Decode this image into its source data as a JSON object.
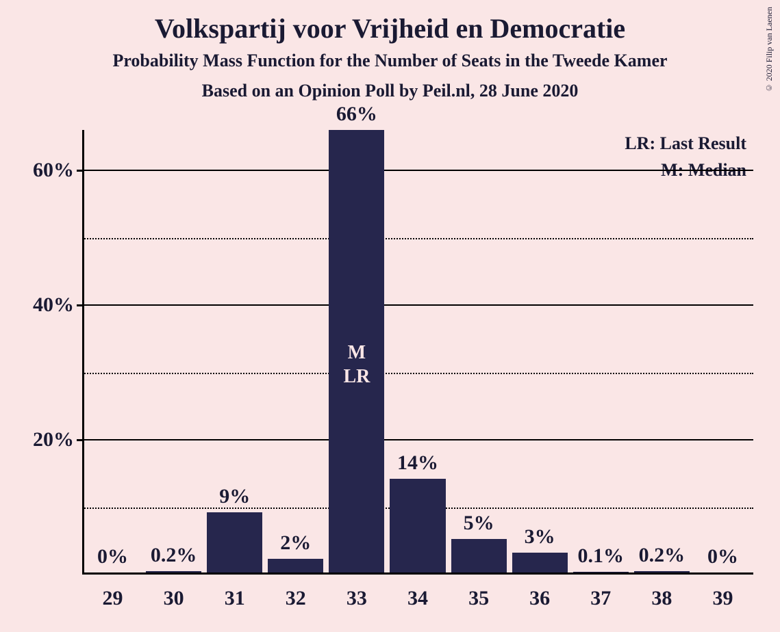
{
  "chart": {
    "type": "bar",
    "title": "Volkspartij voor Vrijheid en Democratie",
    "title_fontsize": 40,
    "subtitle1": "Probability Mass Function for the Number of Seats in the Tweede Kamer",
    "subtitle1_fontsize": 26,
    "subtitle2": "Based on an Opinion Poll by Peil.nl, 28 June 2020",
    "subtitle2_fontsize": 26,
    "copyright": "© 2020 Filip van Laenen",
    "background_color": "#fae6e6",
    "bar_color": "#26264d",
    "text_color": "#1a1a33",
    "ylim_max": 66,
    "y_major_ticks": [
      20,
      40,
      60
    ],
    "y_minor_ticks": [
      10,
      30,
      50
    ],
    "categories": [
      "29",
      "30",
      "31",
      "32",
      "33",
      "34",
      "35",
      "36",
      "37",
      "38",
      "39"
    ],
    "values": [
      0,
      0.2,
      9,
      2,
      66,
      14,
      5,
      3,
      0.1,
      0.2,
      0
    ],
    "value_labels": [
      "0%",
      "0.2%",
      "9%",
      "2%",
      "66%",
      "14%",
      "5%",
      "3%",
      "0.1%",
      "0.2%",
      "0%"
    ],
    "legend_lr": "LR: Last Result",
    "legend_m": "M: Median",
    "marker_m": "M",
    "marker_lr": "LR",
    "marker_index": 4,
    "marker_text_color": "#fae6e6"
  }
}
